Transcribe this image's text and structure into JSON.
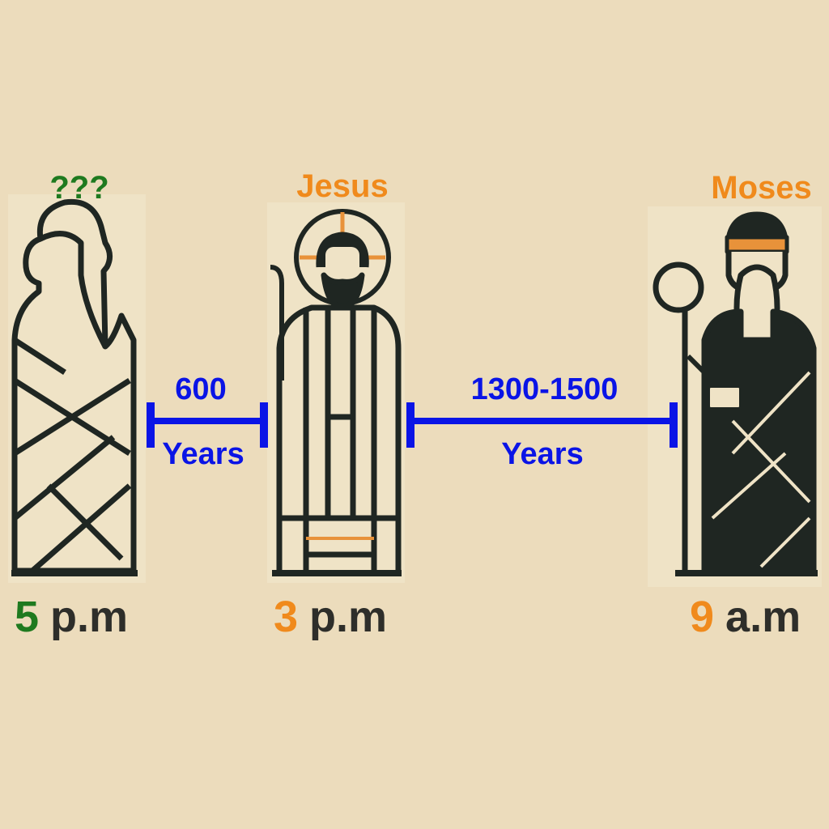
{
  "figures": [
    {
      "name": "???",
      "hour": "5",
      "period": "p.m",
      "color": "#1f7a1f"
    },
    {
      "name": "Jesus",
      "hour": "3",
      "period": "p.m",
      "color": "#f08a1c"
    },
    {
      "name": "Moses",
      "hour": "9",
      "period": "a.m",
      "color": "#f08a1c"
    }
  ],
  "spans": [
    {
      "amount": "600",
      "unit": "Years"
    },
    {
      "amount": "1300-1500",
      "unit": "Years"
    }
  ],
  "colors": {
    "background": "#ecdcbc",
    "span_line": "#0a14e6",
    "ink": "#1f2622"
  }
}
